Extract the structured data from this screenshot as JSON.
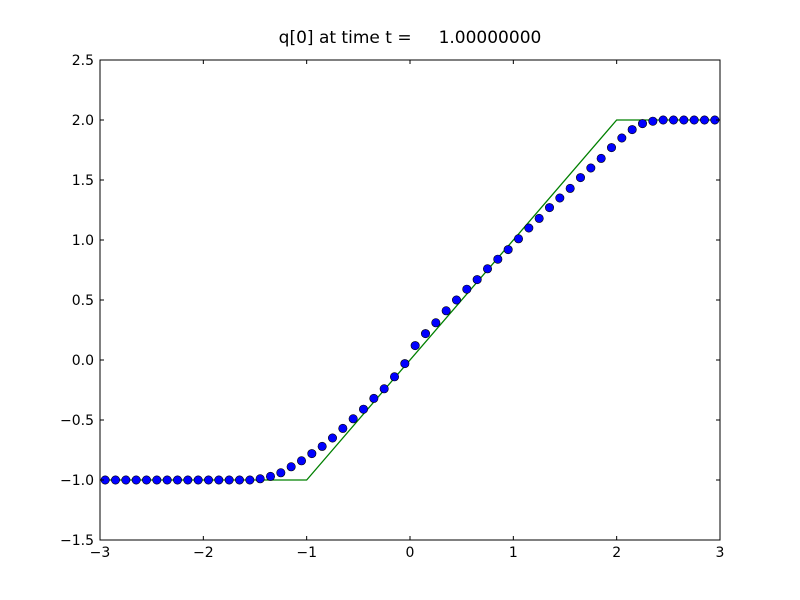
{
  "chart_data": {
    "type": "line",
    "title": "q[0] at time t =     1.00000000",
    "xlim": [
      -3,
      3
    ],
    "ylim": [
      -1.5,
      2.5
    ],
    "xticks": [
      {
        "value": -3,
        "label": "−3"
      },
      {
        "value": -2,
        "label": "−2"
      },
      {
        "value": -1,
        "label": "−1"
      },
      0,
      1,
      2,
      3
    ],
    "yticks": [
      {
        "value": -1.5,
        "label": "−1.5"
      },
      {
        "value": -1,
        "label": "−1.0"
      },
      {
        "value": -0.5,
        "label": "−0.5"
      },
      {
        "value": 0,
        "label": "0.0"
      },
      0.5,
      {
        "value": 1,
        "label": "1.0"
      },
      1.5,
      {
        "value": 2,
        "label": "2.0"
      },
      2.5
    ],
    "grid": false,
    "series": [
      {
        "color": "#008000",
        "marker": false,
        "x": [
          -3,
          -1,
          2,
          3
        ],
        "values": [
          -1,
          -1,
          2,
          2
        ]
      },
      {
        "color": "#0000ff",
        "marker": true,
        "x": [
          -2.95,
          -2.85,
          -2.75,
          -2.65,
          -2.55,
          -2.45,
          -2.35,
          -2.25,
          -2.15,
          -2.05,
          -1.95,
          -1.85,
          -1.75,
          -1.65,
          -1.55,
          -1.45,
          -1.35,
          -1.25,
          -1.15,
          -1.05,
          -0.95,
          -0.85,
          -0.75,
          -0.65,
          -0.55,
          -0.45,
          -0.35,
          -0.25,
          -0.15,
          -0.05,
          0.05,
          0.15,
          0.25,
          0.35,
          0.45,
          0.55,
          0.65,
          0.75,
          0.85,
          0.95,
          1.05,
          1.15,
          1.25,
          1.35,
          1.45,
          1.55,
          1.65,
          1.75,
          1.85,
          1.95,
          2.05,
          2.15,
          2.25,
          2.35,
          2.45,
          2.55,
          2.65,
          2.75,
          2.85,
          2.95
        ],
        "values": [
          -1,
          -1,
          -1,
          -1,
          -1,
          -1,
          -1,
          -1,
          -1,
          -1,
          -1,
          -1,
          -1,
          -1,
          -1,
          -0.99,
          -0.97,
          -0.94,
          -0.89,
          -0.84,
          -0.78,
          -0.72,
          -0.65,
          -0.57,
          -0.49,
          -0.41,
          -0.32,
          -0.24,
          -0.14,
          -0.03,
          0.12,
          0.22,
          0.31,
          0.41,
          0.5,
          0.59,
          0.67,
          0.76,
          0.84,
          0.92,
          1.01,
          1.1,
          1.18,
          1.27,
          1.35,
          1.43,
          1.52,
          1.6,
          1.68,
          1.77,
          1.85,
          1.92,
          1.97,
          1.99,
          2,
          2,
          2,
          2,
          2,
          2
        ]
      }
    ]
  }
}
